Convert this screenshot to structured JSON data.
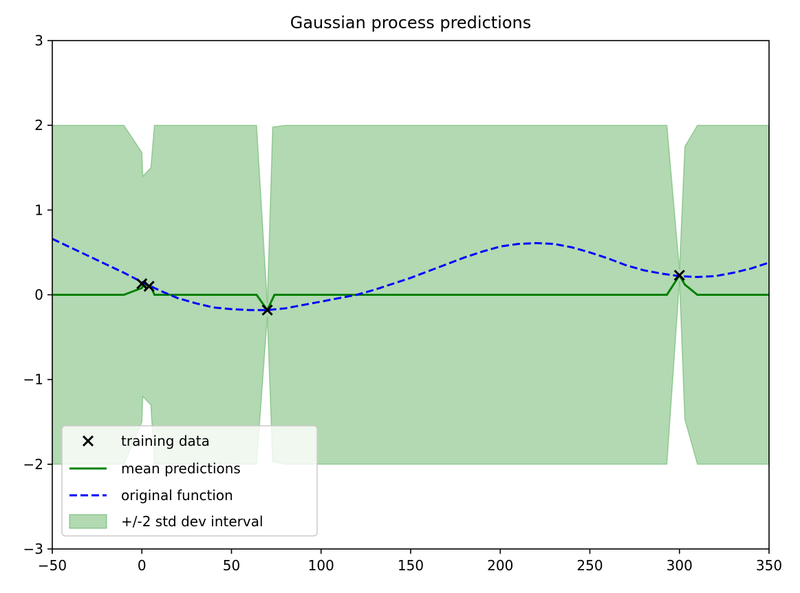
{
  "chart_data": {
    "type": "line",
    "title": "Gaussian process predictions",
    "xlabel": "",
    "ylabel": "",
    "xlim": [
      -50,
      350
    ],
    "ylim": [
      -3,
      3
    ],
    "xticks": [
      -50,
      0,
      50,
      100,
      150,
      200,
      250,
      300,
      350
    ],
    "xtick_labels": [
      "−50",
      "0",
      "50",
      "100",
      "150",
      "200",
      "250",
      "300",
      "350"
    ],
    "yticks": [
      -3,
      -2,
      -1,
      0,
      1,
      2,
      3
    ],
    "ytick_labels": [
      "−3",
      "−2",
      "−1",
      "0",
      "1",
      "2",
      "3"
    ],
    "grid": false,
    "legend_position": "lower-left",
    "legend": [
      {
        "label": "training data",
        "marker": "x",
        "color": "#000000"
      },
      {
        "label": "mean predictions",
        "style": "solid",
        "color": "#008000"
      },
      {
        "label": "original function",
        "style": "dashed",
        "color": "#0000ff"
      },
      {
        "label": "+/-2 std dev interval",
        "style": "fill",
        "color": "#b3d9b3"
      }
    ],
    "training_data": {
      "x": [
        0,
        4,
        70,
        300
      ],
      "y": [
        0.13,
        0.1,
        -0.18,
        0.23
      ]
    },
    "mean_predictions": {
      "x": [
        -50,
        -10,
        0,
        1,
        5,
        7,
        64,
        70,
        74,
        80,
        293,
        300,
        303,
        310,
        350
      ],
      "y": [
        0,
        0,
        0.08,
        0.12,
        0.1,
        0.0,
        0,
        -0.18,
        0.0,
        0,
        0,
        0.23,
        0.12,
        0,
        0
      ]
    },
    "interval_upper": {
      "x": [
        -50,
        -10,
        0,
        0.5,
        5,
        7,
        64,
        70,
        73,
        80,
        293,
        300,
        303,
        310,
        350
      ],
      "y": [
        2,
        2,
        1.68,
        1.4,
        1.5,
        2.0,
        2.0,
        -0.1,
        1.98,
        2.0,
        2.0,
        0.3,
        1.75,
        2.0,
        2.0
      ]
    },
    "interval_lower": {
      "x": [
        -50,
        -10,
        0,
        0.5,
        5,
        7,
        64,
        70,
        73,
        80,
        293,
        300,
        303,
        310,
        350
      ],
      "y": [
        -2,
        -2,
        -1.5,
        -1.2,
        -1.3,
        -2.0,
        -2.0,
        -0.26,
        -1.97,
        -2.0,
        -2.0,
        0.16,
        -1.47,
        -2.0,
        -2.0
      ]
    },
    "original_function": {
      "x": [
        -50,
        -40,
        -30,
        -20,
        -10,
        0,
        10,
        20,
        30,
        40,
        50,
        60,
        70,
        80,
        90,
        100,
        110,
        120,
        130,
        140,
        150,
        160,
        170,
        180,
        190,
        200,
        210,
        220,
        230,
        240,
        250,
        260,
        270,
        280,
        290,
        300,
        310,
        320,
        330,
        340,
        350
      ],
      "y": [
        0.66,
        0.56,
        0.46,
        0.36,
        0.26,
        0.15,
        0.05,
        -0.04,
        -0.1,
        -0.15,
        -0.17,
        -0.18,
        -0.18,
        -0.16,
        -0.12,
        -0.08,
        -0.04,
        0.0,
        0.06,
        0.13,
        0.2,
        0.28,
        0.36,
        0.44,
        0.51,
        0.57,
        0.6,
        0.61,
        0.6,
        0.56,
        0.5,
        0.43,
        0.35,
        0.29,
        0.25,
        0.22,
        0.21,
        0.22,
        0.26,
        0.31,
        0.38
      ]
    }
  }
}
